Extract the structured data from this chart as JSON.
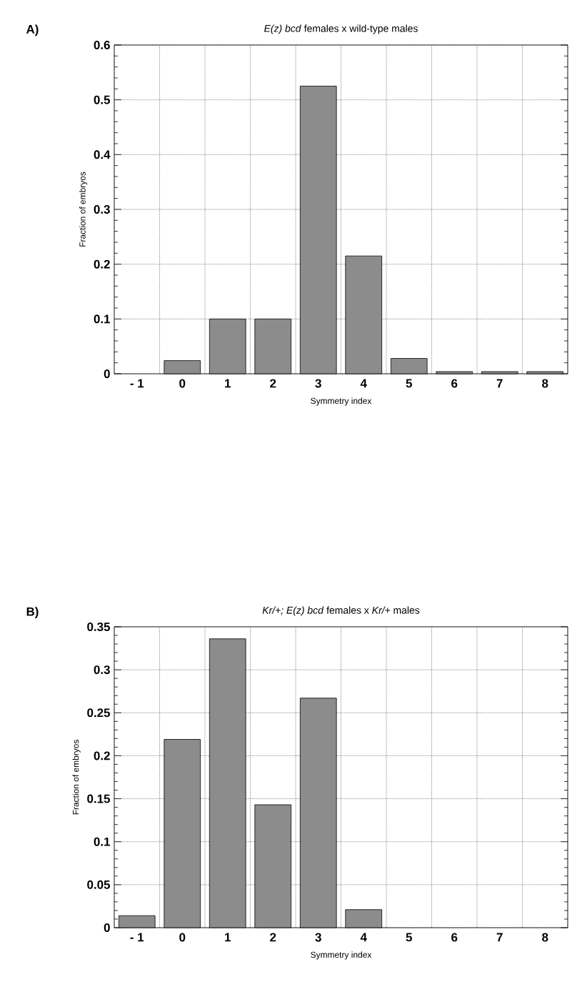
{
  "chart_data": [
    {
      "type": "bar",
      "title": "*E(z) bcd*  females x wild-type males",
      "xlabel": "Symmetry index",
      "ylabel": "Fraction of embryos",
      "annotations": [
        "A)"
      ],
      "categories": [
        "- 1",
        "0",
        "1",
        "2",
        "3",
        "4",
        "5",
        "6",
        "7",
        "8"
      ],
      "values": [
        null,
        0.024,
        0.1,
        0.1,
        0.525,
        0.215,
        0.028,
        0.004,
        0.004,
        0.004
      ],
      "color": "#8c8c8c",
      "ylim": [
        0,
        0.6
      ],
      "yticks": [
        0,
        0.1,
        0.2,
        0.3,
        0.4,
        0.5,
        0.6
      ],
      "grid": true
    },
    {
      "type": "bar",
      "title": "*Kr/+; E(z) bcd* females x *Kr/+* males",
      "xlabel": "Symmetry index",
      "ylabel": "Fraction of embryos",
      "annotations": [
        "B)"
      ],
      "categories": [
        "- 1",
        "0",
        "1",
        "2",
        "3",
        "4",
        "5",
        "6",
        "7",
        "8"
      ],
      "values": [
        0.014,
        0.219,
        0.336,
        0.143,
        0.267,
        0.021,
        null,
        null,
        null,
        null
      ],
      "color": "#8c8c8c",
      "ylim": [
        0,
        0.35
      ],
      "yticks": [
        0,
        0.05,
        0.1,
        0.15,
        0.2,
        0.25,
        0.3,
        0.35
      ],
      "grid": true
    }
  ]
}
